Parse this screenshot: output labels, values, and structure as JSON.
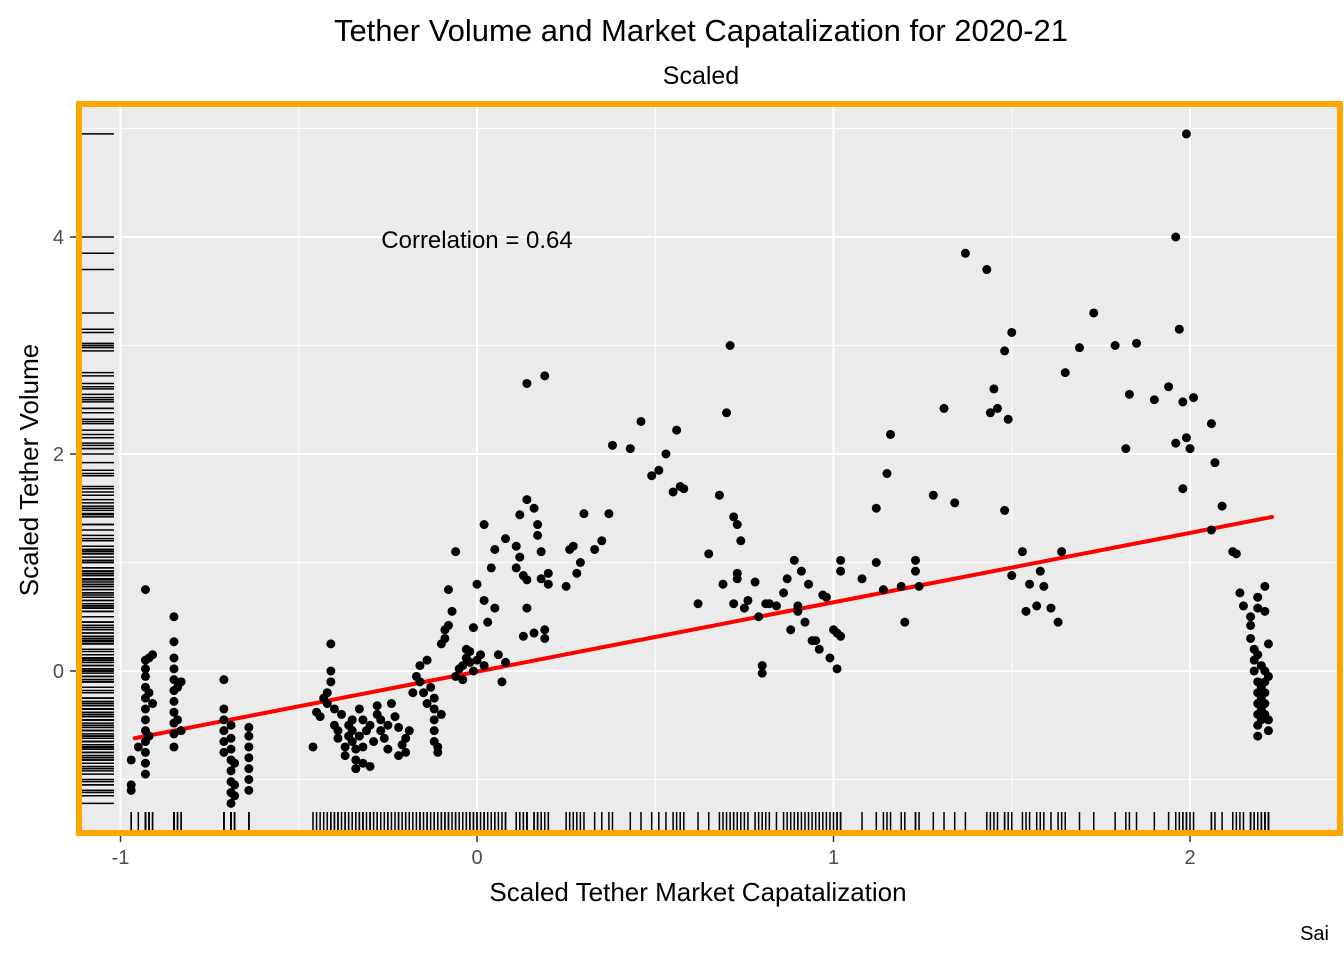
{
  "chart_data": {
    "type": "scatter",
    "title": "Tether Volume and Market Capatalization for 2020-21",
    "subtitle": "Scaled",
    "xlabel": "Scaled Tether Market Capatalization",
    "ylabel": "Scaled Tether Volume",
    "caption": "Sai",
    "annotation": "Correlation = 0.64",
    "xlim": [
      -1.1,
      2.4
    ],
    "ylim": [
      -1.5,
      5.4
    ],
    "x_ticks": [
      -1,
      0,
      1,
      2
    ],
    "x_tick_labels": [
      "-1",
      "0",
      "1",
      "2"
    ],
    "y_ticks": [
      0,
      2,
      4
    ],
    "y_tick_labels": [
      "0",
      "2",
      "4"
    ],
    "grid": true,
    "rug": true,
    "colors": {
      "panel": "#ebebeb",
      "border": "#ffa500",
      "points": "#000000",
      "trend": "#ff0000",
      "grid": "#ffffff"
    },
    "trend_line": {
      "x": [
        -0.96,
        2.23
      ],
      "y": [
        -0.62,
        1.42
      ]
    },
    "points": [
      [
        -0.97,
        -0.82
      ],
      [
        -0.97,
        -1.05
      ],
      [
        -0.97,
        -1.1
      ],
      [
        -0.95,
        -0.7
      ],
      [
        -0.93,
        0.75
      ],
      [
        -0.93,
        0.1
      ],
      [
        -0.93,
        0.02
      ],
      [
        -0.93,
        -0.05
      ],
      [
        -0.93,
        -0.15
      ],
      [
        -0.93,
        -0.25
      ],
      [
        -0.93,
        -0.35
      ],
      [
        -0.93,
        -0.45
      ],
      [
        -0.93,
        -0.55
      ],
      [
        -0.93,
        -0.65
      ],
      [
        -0.93,
        -0.75
      ],
      [
        -0.93,
        -0.85
      ],
      [
        -0.93,
        -0.95
      ],
      [
        -0.92,
        0.12
      ],
      [
        -0.92,
        -0.2
      ],
      [
        -0.92,
        -0.6
      ],
      [
        -0.91,
        0.15
      ],
      [
        -0.91,
        -0.3
      ],
      [
        -0.85,
        0.5
      ],
      [
        -0.85,
        0.27
      ],
      [
        -0.85,
        0.12
      ],
      [
        -0.85,
        0.02
      ],
      [
        -0.85,
        -0.08
      ],
      [
        -0.85,
        -0.18
      ],
      [
        -0.85,
        -0.28
      ],
      [
        -0.85,
        -0.38
      ],
      [
        -0.85,
        -0.48
      ],
      [
        -0.85,
        -0.58
      ],
      [
        -0.85,
        -0.7
      ],
      [
        -0.84,
        -0.15
      ],
      [
        -0.84,
        -0.45
      ],
      [
        -0.83,
        -0.1
      ],
      [
        -0.83,
        -0.55
      ],
      [
        -0.71,
        -0.08
      ],
      [
        -0.71,
        -0.35
      ],
      [
        -0.71,
        -0.45
      ],
      [
        -0.71,
        -0.55
      ],
      [
        -0.71,
        -0.65
      ],
      [
        -0.71,
        -0.75
      ],
      [
        -0.69,
        -0.5
      ],
      [
        -0.69,
        -0.62
      ],
      [
        -0.69,
        -0.72
      ],
      [
        -0.69,
        -0.82
      ],
      [
        -0.69,
        -0.92
      ],
      [
        -0.69,
        -1.02
      ],
      [
        -0.69,
        -1.12
      ],
      [
        -0.69,
        -1.22
      ],
      [
        -0.68,
        -0.85
      ],
      [
        -0.68,
        -1.05
      ],
      [
        -0.68,
        -1.15
      ],
      [
        -0.64,
        -0.52
      ],
      [
        -0.64,
        -0.6
      ],
      [
        -0.64,
        -0.7
      ],
      [
        -0.64,
        -0.8
      ],
      [
        -0.64,
        -0.9
      ],
      [
        -0.64,
        -1.0
      ],
      [
        -0.64,
        -1.1
      ],
      [
        -0.46,
        -0.7
      ],
      [
        -0.45,
        -0.38
      ],
      [
        -0.44,
        -0.42
      ],
      [
        -0.43,
        -0.25
      ],
      [
        -0.42,
        -0.3
      ],
      [
        -0.42,
        -0.2
      ],
      [
        -0.41,
        0.25
      ],
      [
        -0.41,
        0.0
      ],
      [
        -0.41,
        -0.1
      ],
      [
        -0.4,
        -0.35
      ],
      [
        -0.4,
        -0.5
      ],
      [
        -0.39,
        -0.55
      ],
      [
        -0.39,
        -0.62
      ],
      [
        -0.38,
        -0.4
      ],
      [
        -0.37,
        -0.7
      ],
      [
        -0.37,
        -0.78
      ],
      [
        -0.36,
        -0.5
      ],
      [
        -0.36,
        -0.6
      ],
      [
        -0.35,
        -0.45
      ],
      [
        -0.35,
        -0.55
      ],
      [
        -0.35,
        -0.65
      ],
      [
        -0.34,
        -0.72
      ],
      [
        -0.34,
        -0.82
      ],
      [
        -0.34,
        -0.9
      ],
      [
        -0.33,
        -0.35
      ],
      [
        -0.33,
        -0.6
      ],
      [
        -0.32,
        -0.45
      ],
      [
        -0.32,
        -0.7
      ],
      [
        -0.32,
        -0.85
      ],
      [
        -0.31,
        -0.55
      ],
      [
        -0.3,
        -0.88
      ],
      [
        -0.3,
        -0.5
      ],
      [
        -0.29,
        -0.65
      ],
      [
        -0.28,
        -0.4
      ],
      [
        -0.28,
        -0.32
      ],
      [
        -0.27,
        -0.45
      ],
      [
        -0.27,
        -0.55
      ],
      [
        -0.26,
        -0.62
      ],
      [
        -0.25,
        -0.72
      ],
      [
        -0.25,
        -0.5
      ],
      [
        -0.24,
        -0.3
      ],
      [
        -0.23,
        -0.42
      ],
      [
        -0.22,
        -0.52
      ],
      [
        -0.22,
        -0.78
      ],
      [
        -0.21,
        -0.68
      ],
      [
        -0.2,
        -0.62
      ],
      [
        -0.2,
        -0.75
      ],
      [
        -0.19,
        -0.55
      ],
      [
        -0.18,
        -0.2
      ],
      [
        -0.17,
        -0.05
      ],
      [
        -0.16,
        0.05
      ],
      [
        -0.16,
        -0.1
      ],
      [
        -0.15,
        -0.2
      ],
      [
        -0.14,
        0.1
      ],
      [
        -0.14,
        -0.3
      ],
      [
        -0.13,
        -0.15
      ],
      [
        -0.12,
        -0.25
      ],
      [
        -0.12,
        -0.35
      ],
      [
        -0.12,
        -0.45
      ],
      [
        -0.12,
        -0.55
      ],
      [
        -0.12,
        -0.65
      ],
      [
        -0.11,
        -0.75
      ],
      [
        -0.11,
        -0.7
      ],
      [
        -0.1,
        -0.4
      ],
      [
        -0.1,
        0.25
      ],
      [
        -0.09,
        0.3
      ],
      [
        -0.09,
        0.38
      ],
      [
        -0.08,
        0.42
      ],
      [
        -0.08,
        0.75
      ],
      [
        -0.07,
        0.55
      ],
      [
        -0.06,
        1.1
      ],
      [
        -0.06,
        -0.05
      ],
      [
        -0.05,
        0.02
      ],
      [
        -0.04,
        0.05
      ],
      [
        -0.04,
        -0.08
      ],
      [
        -0.03,
        0.12
      ],
      [
        -0.03,
        0.2
      ],
      [
        -0.02,
        0.18
      ],
      [
        -0.02,
        0.08
      ],
      [
        -0.01,
        0.0
      ],
      [
        0.0,
        0.1
      ],
      [
        0.01,
        0.15
      ],
      [
        0.02,
        0.05
      ],
      [
        0.02,
        0.65
      ],
      [
        0.03,
        0.45
      ],
      [
        0.04,
        0.95
      ],
      [
        0.05,
        0.58
      ],
      [
        0.06,
        0.15
      ],
      [
        0.07,
        -0.1
      ],
      [
        0.08,
        0.08
      ],
      [
        -0.01,
        0.4
      ],
      [
        0.0,
        0.8
      ],
      [
        0.02,
        1.35
      ],
      [
        0.05,
        1.12
      ],
      [
        0.08,
        1.22
      ],
      [
        0.12,
        1.44
      ],
      [
        0.16,
        1.5
      ],
      [
        0.14,
        0.84
      ],
      [
        0.14,
        0.58
      ],
      [
        0.13,
        0.32
      ],
      [
        0.13,
        0.88
      ],
      [
        0.12,
        1.05
      ],
      [
        0.11,
        1.15
      ],
      [
        0.11,
        0.95
      ],
      [
        0.14,
        1.58
      ],
      [
        0.14,
        2.65
      ],
      [
        0.16,
        0.35
      ],
      [
        0.17,
        1.35
      ],
      [
        0.17,
        1.25
      ],
      [
        0.18,
        1.1
      ],
      [
        0.18,
        0.85
      ],
      [
        0.19,
        0.3
      ],
      [
        0.2,
        0.8
      ],
      [
        0.2,
        0.9
      ],
      [
        0.19,
        0.38
      ],
      [
        0.19,
        2.72
      ],
      [
        0.25,
        0.78
      ],
      [
        0.26,
        1.12
      ],
      [
        0.27,
        1.15
      ],
      [
        0.28,
        0.9
      ],
      [
        0.29,
        1.0
      ],
      [
        0.3,
        1.45
      ],
      [
        0.33,
        1.12
      ],
      [
        0.35,
        1.2
      ],
      [
        0.37,
        1.45
      ],
      [
        0.38,
        2.08
      ],
      [
        0.43,
        2.05
      ],
      [
        0.46,
        2.3
      ],
      [
        0.49,
        1.8
      ],
      [
        0.51,
        1.85
      ],
      [
        0.53,
        2.0
      ],
      [
        0.55,
        1.65
      ],
      [
        0.56,
        2.22
      ],
      [
        0.57,
        1.7
      ],
      [
        0.58,
        1.68
      ],
      [
        0.62,
        0.62
      ],
      [
        0.65,
        1.08
      ],
      [
        0.68,
        1.62
      ],
      [
        0.69,
        0.8
      ],
      [
        0.7,
        2.38
      ],
      [
        0.71,
        3.0
      ],
      [
        0.72,
        1.42
      ],
      [
        0.73,
        1.35
      ],
      [
        0.73,
        0.85
      ],
      [
        0.74,
        1.2
      ],
      [
        0.72,
        0.62
      ],
      [
        0.73,
        0.9
      ],
      [
        0.75,
        0.58
      ],
      [
        0.76,
        0.65
      ],
      [
        0.78,
        0.82
      ],
      [
        0.79,
        0.5
      ],
      [
        0.8,
        0.05
      ],
      [
        0.8,
        -0.02
      ],
      [
        0.81,
        0.62
      ],
      [
        0.82,
        0.62
      ],
      [
        0.84,
        0.6
      ],
      [
        0.86,
        0.72
      ],
      [
        0.87,
        0.85
      ],
      [
        0.88,
        0.38
      ],
      [
        0.89,
        1.02
      ],
      [
        0.9,
        0.55
      ],
      [
        0.9,
        0.6
      ],
      [
        0.91,
        0.92
      ],
      [
        0.92,
        0.45
      ],
      [
        0.93,
        0.8
      ],
      [
        0.94,
        0.28
      ],
      [
        0.95,
        0.28
      ],
      [
        0.96,
        0.2
      ],
      [
        0.97,
        0.7
      ],
      [
        0.98,
        0.68
      ],
      [
        0.99,
        0.12
      ],
      [
        1.0,
        0.38
      ],
      [
        1.01,
        0.35
      ],
      [
        1.02,
        0.32
      ],
      [
        1.02,
        0.92
      ],
      [
        1.01,
        0.02
      ],
      [
        1.02,
        1.02
      ],
      [
        1.08,
        0.85
      ],
      [
        1.12,
        1.5
      ],
      [
        1.12,
        1.0
      ],
      [
        1.14,
        0.75
      ],
      [
        1.15,
        1.82
      ],
      [
        1.16,
        2.18
      ],
      [
        1.19,
        0.78
      ],
      [
        1.2,
        0.45
      ],
      [
        1.23,
        0.92
      ],
      [
        1.23,
        1.02
      ],
      [
        1.24,
        0.78
      ],
      [
        1.28,
        1.62
      ],
      [
        1.31,
        2.42
      ],
      [
        1.34,
        1.55
      ],
      [
        1.37,
        3.85
      ],
      [
        1.43,
        3.7
      ],
      [
        1.44,
        2.38
      ],
      [
        1.45,
        2.6
      ],
      [
        1.46,
        2.42
      ],
      [
        1.48,
        2.95
      ],
      [
        1.48,
        1.48
      ],
      [
        1.49,
        2.32
      ],
      [
        1.5,
        3.12
      ],
      [
        1.5,
        0.88
      ],
      [
        1.53,
        1.1
      ],
      [
        1.54,
        0.55
      ],
      [
        1.55,
        0.8
      ],
      [
        1.57,
        0.6
      ],
      [
        1.58,
        0.92
      ],
      [
        1.59,
        0.78
      ],
      [
        1.61,
        0.58
      ],
      [
        1.63,
        0.45
      ],
      [
        1.64,
        1.1
      ],
      [
        1.65,
        2.75
      ],
      [
        1.69,
        2.98
      ],
      [
        1.73,
        3.3
      ],
      [
        1.79,
        3.0
      ],
      [
        1.82,
        2.05
      ],
      [
        1.83,
        2.55
      ],
      [
        1.85,
        3.02
      ],
      [
        1.9,
        2.5
      ],
      [
        1.94,
        2.62
      ],
      [
        1.96,
        4.0
      ],
      [
        1.96,
        2.1
      ],
      [
        1.97,
        3.15
      ],
      [
        1.98,
        2.48
      ],
      [
        1.98,
        1.68
      ],
      [
        1.99,
        2.15
      ],
      [
        2.0,
        2.05
      ],
      [
        1.99,
        4.95
      ],
      [
        2.01,
        2.52
      ],
      [
        2.06,
        2.28
      ],
      [
        2.07,
        1.92
      ],
      [
        2.09,
        1.52
      ],
      [
        2.06,
        1.3
      ],
      [
        2.12,
        1.1
      ],
      [
        2.13,
        1.08
      ],
      [
        2.14,
        0.72
      ],
      [
        2.15,
        0.6
      ],
      [
        2.17,
        0.5
      ],
      [
        2.17,
        0.42
      ],
      [
        2.17,
        0.3
      ],
      [
        2.18,
        0.2
      ],
      [
        2.18,
        0.1
      ],
      [
        2.18,
        0.0
      ],
      [
        2.19,
        0.68
      ],
      [
        2.19,
        0.58
      ],
      [
        2.19,
        0.15
      ],
      [
        2.19,
        -0.1
      ],
      [
        2.19,
        -0.2
      ],
      [
        2.19,
        -0.3
      ],
      [
        2.19,
        -0.4
      ],
      [
        2.19,
        -0.5
      ],
      [
        2.19,
        -0.6
      ],
      [
        2.2,
        0.05
      ],
      [
        2.2,
        -0.15
      ],
      [
        2.2,
        -0.25
      ],
      [
        2.2,
        -0.35
      ],
      [
        2.2,
        -0.45
      ],
      [
        2.21,
        0.78
      ],
      [
        2.21,
        0.55
      ],
      [
        2.21,
        0.0
      ],
      [
        2.21,
        -0.1
      ],
      [
        2.21,
        -0.2
      ],
      [
        2.21,
        -0.3
      ],
      [
        2.21,
        -0.4
      ],
      [
        2.22,
        0.25
      ],
      [
        2.22,
        -0.05
      ],
      [
        2.22,
        -0.45
      ],
      [
        2.22,
        -0.55
      ]
    ]
  }
}
